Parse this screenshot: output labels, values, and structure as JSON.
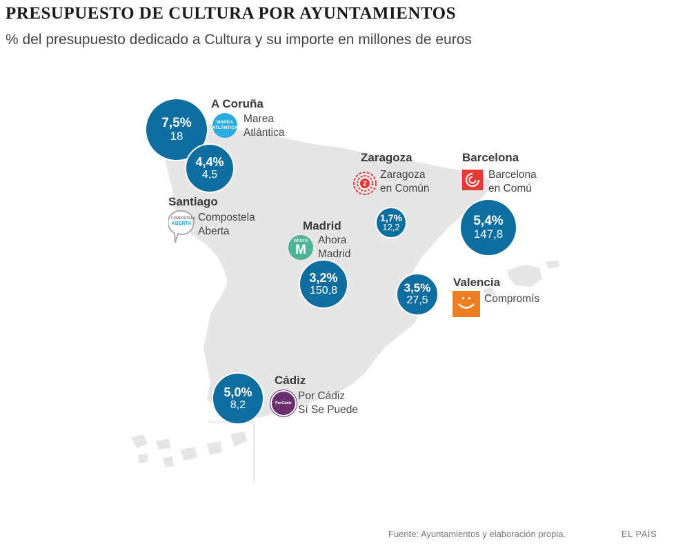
{
  "title": "PRESUPUESTO DE CULTURA POR AYUNTAMIENTOS",
  "subtitle": "% del presupuesto dedicado a Cultura y su importe en millones de euros",
  "cities": [
    {
      "name": "A Coruña",
      "party": [
        "Marea",
        "Atlántica"
      ],
      "logo": "marea-atlantica-logo",
      "logo_text": [
        "MAREA",
        "ATLÁNTICA"
      ],
      "pct": "7,5%",
      "amount": "18"
    },
    {
      "name": "Santiago",
      "party": [
        "Compostela",
        "Aberta"
      ],
      "logo": "compostela-aberta-logo",
      "logo_text": [
        "COMPOSTELA",
        "ABERTA"
      ],
      "pct": "4,4%",
      "amount": "4,5"
    },
    {
      "name": "Zaragoza",
      "party": [
        "Zaragoza",
        "en Común"
      ],
      "logo": "zaragoza-en-comun-logo",
      "pct": "1,7%",
      "amount": "12,2"
    },
    {
      "name": "Barcelona",
      "party": [
        "Barcelona",
        "en Comú"
      ],
      "logo": "barcelona-en-comu-logo",
      "pct": "5,4%",
      "amount": "147,8"
    },
    {
      "name": "Madrid",
      "party": [
        "Ahora",
        "Madrid"
      ],
      "logo": "ahora-madrid-logo",
      "logo_text": [
        "ahora",
        "M"
      ],
      "pct": "3,2%",
      "amount": "150,8"
    },
    {
      "name": "Valencia",
      "party": [
        "Compromís"
      ],
      "logo": "compromis-logo",
      "pct": "3,5%",
      "amount": "27,5"
    },
    {
      "name": "Cádiz",
      "party": [
        "Por Cádiz",
        "Sí Se Puede"
      ],
      "logo": "por-cadiz-si-se-puede-logo",
      "logo_text": [
        "PorCádiz"
      ],
      "pct": "5,0%",
      "amount": "8,2"
    }
  ],
  "colors": {
    "bubble": "#0e6ea0",
    "land": "#e6e6e6",
    "marea": "#29abe2",
    "zaragoza": "#e53935",
    "barcelona": "#e53935",
    "ahora": "#4fb395",
    "compromis": "#ef7d22",
    "cadiz": "#6b2f6e"
  },
  "footer": {
    "source": "Fuente: Ayuntamientos y elaboración propia.",
    "brand": "EL PAÍS"
  }
}
